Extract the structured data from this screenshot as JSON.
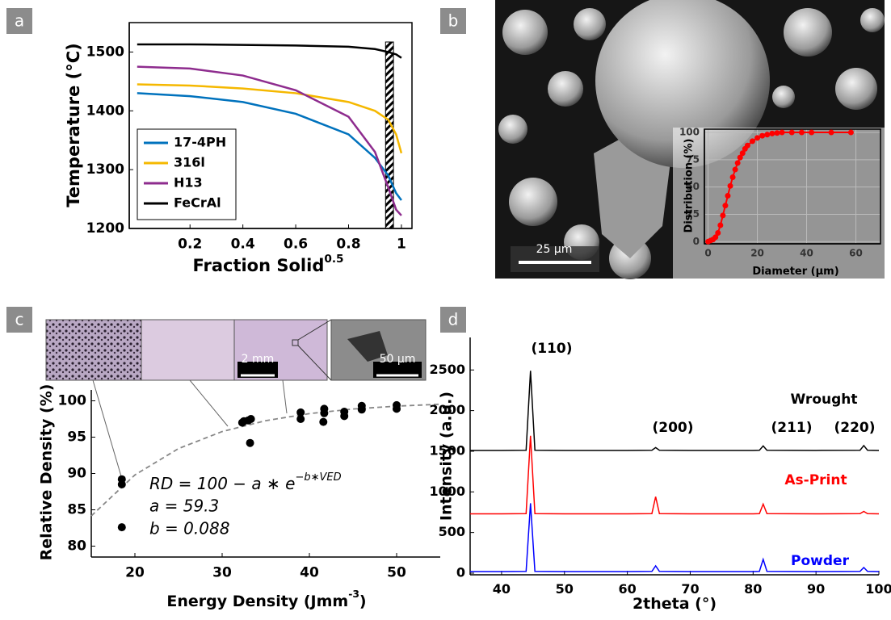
{
  "chart_data": [
    {
      "type": "line",
      "panel_label": "a",
      "xlabel": "Fraction Solid",
      "xlabel_sup": "0.5",
      "ylabel": "Temperature (°C)",
      "x": [
        0,
        0.2,
        0.4,
        0.6,
        0.8,
        0.9,
        0.95,
        0.98,
        1
      ],
      "series": [
        {
          "name": "17-4PH",
          "color": "#0072bd",
          "values": [
            1430,
            1425,
            1415,
            1395,
            1360,
            1320,
            1290,
            1260,
            1248
          ]
        },
        {
          "name": "316l",
          "color": "#f5b800",
          "values": [
            1445,
            1443,
            1438,
            1430,
            1415,
            1400,
            1385,
            1360,
            1328
          ]
        },
        {
          "name": "H13",
          "color": "#8e2c8e",
          "values": [
            1475,
            1472,
            1460,
            1435,
            1390,
            1330,
            1270,
            1232,
            1222
          ]
        },
        {
          "name": "FeCrAl",
          "color": "#000000",
          "values": [
            1513,
            1513,
            1512,
            1511,
            1509,
            1505,
            1500,
            1496,
            1490
          ]
        }
      ],
      "xlim": [
        -0.03,
        1.04
      ],
      "ylim": [
        1200,
        1550
      ],
      "xticks": [
        0.2,
        0.4,
        0.6,
        0.8,
        1
      ],
      "yticks": [
        1200,
        1300,
        1400,
        1500
      ],
      "shaded_region": [
        0.94,
        0.97
      ],
      "legend": "lower left",
      "box": true
    },
    {
      "type": "line",
      "panel_label": "b",
      "xlabel": "Diameter (μm)",
      "ylabel": "Distribution (%)",
      "x": [
        0,
        1,
        2,
        3,
        4,
        5,
        6,
        7,
        8,
        9,
        10,
        11,
        12,
        13,
        14,
        15,
        16,
        18,
        20,
        22,
        24,
        26,
        28,
        30,
        34,
        38,
        42,
        50,
        58
      ],
      "series": [
        {
          "name": "Distribution",
          "color": "#ff0000",
          "values": [
            0,
            1,
            2,
            4,
            8,
            15,
            24,
            33,
            42,
            51,
            59,
            66,
            72,
            77,
            81,
            85,
            88,
            92,
            95,
            97,
            98,
            99,
            99.5,
            100,
            100,
            100,
            100,
            100,
            100
          ]
        }
      ],
      "xlim": [
        -1.5,
        70
      ],
      "ylim": [
        -2,
        103
      ],
      "xticks": [
        0,
        20,
        40,
        60
      ],
      "yticks": [
        0,
        25,
        50,
        75,
        100
      ],
      "grid": true,
      "markers": true,
      "box": true,
      "image_annotations": [
        "25 µm"
      ]
    },
    {
      "type": "scatter",
      "panel_label": "c",
      "xlabel": "Energy Density (Jmm",
      "xlabel_sup": "-3",
      "xlabel_end": ")",
      "ylabel": "Relative Density (%)",
      "x": [
        18.5,
        18.5,
        18.5,
        32.3,
        32.5,
        33,
        33.3,
        33.2,
        39,
        39,
        41.7,
        41.7,
        41.6,
        44,
        44,
        46,
        46,
        50,
        50
      ],
      "values": [
        89.2,
        88.5,
        82.6,
        97,
        97.2,
        97.3,
        97.5,
        94.2,
        98.4,
        97.5,
        98.9,
        98.3,
        97.1,
        98.5,
        97.9,
        99.3,
        98.8,
        99.4,
        98.9
      ],
      "color": "#000000",
      "fit_curve": {
        "x": [
          15,
          20,
          25,
          30,
          35,
          40,
          45,
          50,
          55
        ],
        "values": [
          84.16,
          89.8,
          93.43,
          95.77,
          97.27,
          98.24,
          98.87,
          99.27,
          99.53
        ]
      },
      "equation": "RD = 100 − a ∗ e",
      "equation_sup": "−b∗VED",
      "fit_params": [
        "a = 59.3",
        "b = 0.088"
      ],
      "xlim": [
        15,
        55
      ],
      "ylim": [
        78.5,
        101.5
      ],
      "xticks": [
        20,
        30,
        40,
        50
      ],
      "yticks": [
        80,
        85,
        90,
        95,
        100
      ],
      "image_annotations": [
        "2 mm",
        "50 µm"
      ]
    },
    {
      "type": "line",
      "panel_label": "d",
      "xlabel": "2theta (°)",
      "ylabel": "Intensity (a.u.)",
      "x": [
        35,
        40,
        43.9,
        44.6,
        45.3,
        50,
        60,
        63.9,
        64.5,
        65.1,
        70,
        80,
        81,
        81.6,
        82.2,
        90,
        97,
        97.6,
        98.2,
        100
      ],
      "series": [
        {
          "name": "Wrought",
          "color": "#000000",
          "values": [
            1510,
            1510,
            1512,
            2490,
            1512,
            1510,
            1510,
            1512,
            1545,
            1512,
            1510,
            1510,
            1512,
            1565,
            1512,
            1510,
            1512,
            1570,
            1512,
            1510
          ]
        },
        {
          "name": "As-Print",
          "color": "#ff0000",
          "values": [
            730,
            730,
            732,
            1690,
            732,
            730,
            730,
            732,
            940,
            732,
            730,
            730,
            732,
            850,
            732,
            730,
            732,
            760,
            732,
            730
          ]
        },
        {
          "name": "Powder",
          "color": "#0000ff",
          "values": [
            20,
            20,
            22,
            860,
            22,
            20,
            20,
            22,
            90,
            22,
            20,
            20,
            22,
            170,
            22,
            20,
            22,
            70,
            22,
            20
          ]
        }
      ],
      "peak_labels": [
        "(110)",
        "(200)",
        "(211)",
        "(220)"
      ],
      "xlim": [
        35,
        100
      ],
      "ylim": [
        -20,
        2900
      ],
      "xticks": [
        40,
        50,
        60,
        70,
        80,
        90,
        100
      ],
      "yticks": [
        0,
        500,
        1000,
        1500,
        2000,
        2500
      ],
      "legend": "inline"
    }
  ]
}
